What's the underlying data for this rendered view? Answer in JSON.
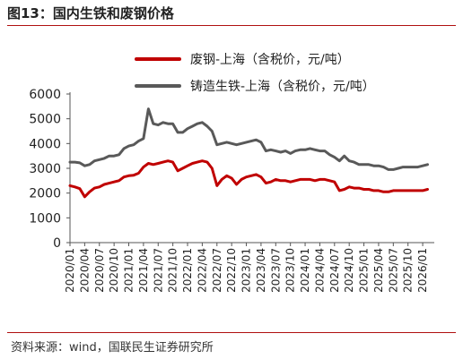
{
  "header": {
    "title": "图13：国内生铁和废钢价格"
  },
  "footer": {
    "source": "资料来源：wind，国联民生证券研究所"
  },
  "chart_data": {
    "type": "line",
    "title": "",
    "xlabel": "",
    "ylabel": "",
    "ylim": [
      0,
      6000
    ],
    "yticks": [
      0,
      1000,
      2000,
      3000,
      4000,
      5000,
      6000
    ],
    "xlim": [
      "2020/01",
      "2026/03"
    ],
    "xticks": [
      "2020/01",
      "2020/04",
      "2020/07",
      "2020/10",
      "2021/01",
      "2021/04",
      "2021/07",
      "2021/10",
      "2022/01",
      "2022/04",
      "2022/07",
      "2022/10",
      "2023/01",
      "2023/04",
      "2023/07",
      "2023/10",
      "2024/01",
      "2024/04",
      "2024/07",
      "2024/10",
      "2025/01",
      "2025/04",
      "2025/07",
      "2025/10",
      "2026/01"
    ],
    "grid": false,
    "legend": "top-center",
    "series": [
      {
        "name": "废钢-上海（含税价，元/吨）",
        "color": "#c00000",
        "points": [
          [
            "2020/01",
            2300
          ],
          [
            "2020/02",
            2250
          ],
          [
            "2020/03",
            2180
          ],
          [
            "2020/04",
            1850
          ],
          [
            "2020/05",
            2050
          ],
          [
            "2020/06",
            2200
          ],
          [
            "2020/07",
            2250
          ],
          [
            "2020/08",
            2350
          ],
          [
            "2020/09",
            2400
          ],
          [
            "2020/10",
            2450
          ],
          [
            "2020/11",
            2500
          ],
          [
            "2020/12",
            2650
          ],
          [
            "2021/01",
            2700
          ],
          [
            "2021/02",
            2720
          ],
          [
            "2021/03",
            2800
          ],
          [
            "2021/04",
            3050
          ],
          [
            "2021/05",
            3200
          ],
          [
            "2021/06",
            3150
          ],
          [
            "2021/07",
            3200
          ],
          [
            "2021/08",
            3250
          ],
          [
            "2021/09",
            3300
          ],
          [
            "2021/10",
            3250
          ],
          [
            "2021/11",
            2900
          ],
          [
            "2021/12",
            3000
          ],
          [
            "2022/01",
            3100
          ],
          [
            "2022/02",
            3200
          ],
          [
            "2022/03",
            3250
          ],
          [
            "2022/04",
            3300
          ],
          [
            "2022/05",
            3250
          ],
          [
            "2022/06",
            3000
          ],
          [
            "2022/07",
            2300
          ],
          [
            "2022/08",
            2550
          ],
          [
            "2022/09",
            2700
          ],
          [
            "2022/10",
            2600
          ],
          [
            "2022/11",
            2350
          ],
          [
            "2022/12",
            2550
          ],
          [
            "2023/01",
            2650
          ],
          [
            "2023/02",
            2700
          ],
          [
            "2023/03",
            2750
          ],
          [
            "2023/04",
            2650
          ],
          [
            "2023/05",
            2400
          ],
          [
            "2023/06",
            2450
          ],
          [
            "2023/07",
            2550
          ],
          [
            "2023/08",
            2500
          ],
          [
            "2023/09",
            2500
          ],
          [
            "2023/10",
            2450
          ],
          [
            "2023/11",
            2500
          ],
          [
            "2023/12",
            2550
          ],
          [
            "2024/01",
            2550
          ],
          [
            "2024/02",
            2550
          ],
          [
            "2024/03",
            2500
          ],
          [
            "2024/04",
            2550
          ],
          [
            "2024/05",
            2550
          ],
          [
            "2024/06",
            2500
          ],
          [
            "2024/07",
            2450
          ],
          [
            "2024/08",
            2100
          ],
          [
            "2024/09",
            2150
          ],
          [
            "2024/10",
            2250
          ],
          [
            "2024/11",
            2200
          ],
          [
            "2024/12",
            2200
          ],
          [
            "2025/01",
            2150
          ],
          [
            "2025/02",
            2150
          ],
          [
            "2025/03",
            2100
          ],
          [
            "2025/04",
            2100
          ],
          [
            "2025/05",
            2050
          ],
          [
            "2025/06",
            2050
          ],
          [
            "2025/07",
            2100
          ],
          [
            "2025/08",
            2100
          ],
          [
            "2025/09",
            2100
          ],
          [
            "2025/10",
            2100
          ],
          [
            "2025/11",
            2100
          ],
          [
            "2025/12",
            2100
          ],
          [
            "2026/01",
            2100
          ],
          [
            "2026/02",
            2150
          ]
        ]
      },
      {
        "name": "铸造生铁-上海（含税价，元/吨）",
        "color": "#595959",
        "points": [
          [
            "2020/01",
            3250
          ],
          [
            "2020/02",
            3250
          ],
          [
            "2020/03",
            3220
          ],
          [
            "2020/04",
            3100
          ],
          [
            "2020/05",
            3150
          ],
          [
            "2020/06",
            3300
          ],
          [
            "2020/07",
            3350
          ],
          [
            "2020/08",
            3400
          ],
          [
            "2020/09",
            3500
          ],
          [
            "2020/10",
            3500
          ],
          [
            "2020/11",
            3550
          ],
          [
            "2020/12",
            3800
          ],
          [
            "2021/01",
            3900
          ],
          [
            "2021/02",
            3950
          ],
          [
            "2021/03",
            4100
          ],
          [
            "2021/04",
            4200
          ],
          [
            "2021/05",
            5400
          ],
          [
            "2021/06",
            4800
          ],
          [
            "2021/07",
            4750
          ],
          [
            "2021/08",
            4850
          ],
          [
            "2021/09",
            4800
          ],
          [
            "2021/10",
            4800
          ],
          [
            "2021/11",
            4450
          ],
          [
            "2021/12",
            4450
          ],
          [
            "2022/01",
            4600
          ],
          [
            "2022/02",
            4700
          ],
          [
            "2022/03",
            4800
          ],
          [
            "2022/04",
            4850
          ],
          [
            "2022/05",
            4700
          ],
          [
            "2022/06",
            4500
          ],
          [
            "2022/07",
            3950
          ],
          [
            "2022/08",
            4000
          ],
          [
            "2022/09",
            4050
          ],
          [
            "2022/10",
            4000
          ],
          [
            "2022/11",
            3950
          ],
          [
            "2022/12",
            4000
          ],
          [
            "2023/01",
            4050
          ],
          [
            "2023/02",
            4100
          ],
          [
            "2023/03",
            4150
          ],
          [
            "2023/04",
            4050
          ],
          [
            "2023/05",
            3700
          ],
          [
            "2023/06",
            3750
          ],
          [
            "2023/07",
            3700
          ],
          [
            "2023/08",
            3650
          ],
          [
            "2023/09",
            3700
          ],
          [
            "2023/10",
            3600
          ],
          [
            "2023/11",
            3700
          ],
          [
            "2023/12",
            3750
          ],
          [
            "2024/01",
            3750
          ],
          [
            "2024/02",
            3800
          ],
          [
            "2024/03",
            3750
          ],
          [
            "2024/04",
            3700
          ],
          [
            "2024/05",
            3700
          ],
          [
            "2024/06",
            3550
          ],
          [
            "2024/07",
            3450
          ],
          [
            "2024/08",
            3300
          ],
          [
            "2024/09",
            3500
          ],
          [
            "2024/10",
            3300
          ],
          [
            "2024/11",
            3250
          ],
          [
            "2024/12",
            3150
          ],
          [
            "2025/01",
            3150
          ],
          [
            "2025/02",
            3150
          ],
          [
            "2025/03",
            3100
          ],
          [
            "2025/04",
            3100
          ],
          [
            "2025/05",
            3050
          ],
          [
            "2025/06",
            2950
          ],
          [
            "2025/07",
            2950
          ],
          [
            "2025/08",
            3000
          ],
          [
            "2025/09",
            3050
          ],
          [
            "2025/10",
            3050
          ],
          [
            "2025/11",
            3050
          ],
          [
            "2025/12",
            3050
          ],
          [
            "2026/01",
            3100
          ],
          [
            "2026/02",
            3150
          ]
        ]
      }
    ]
  }
}
